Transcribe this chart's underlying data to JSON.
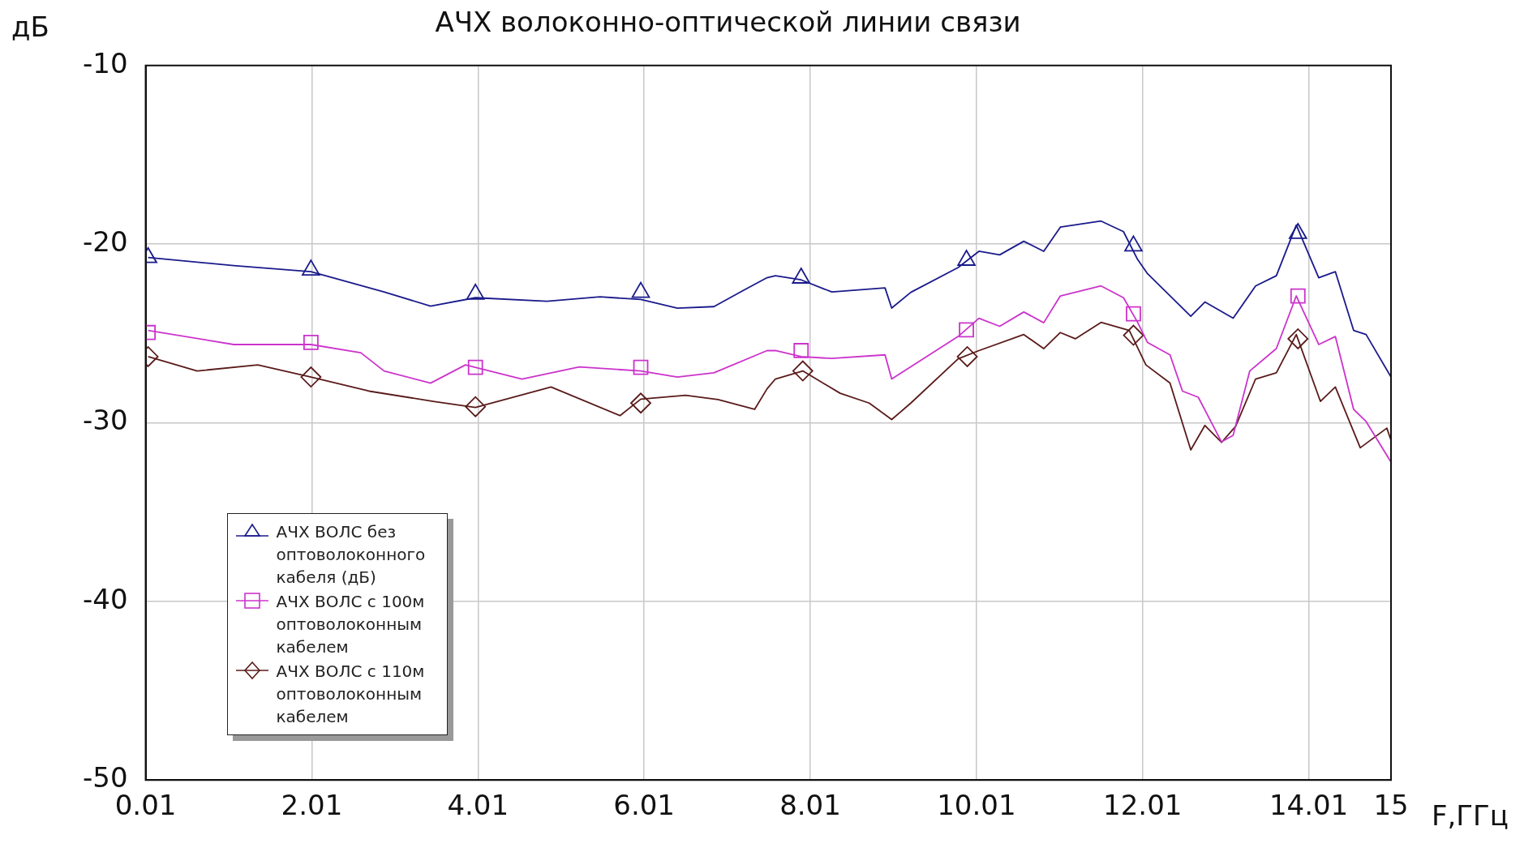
{
  "chart_data": {
    "type": "line",
    "title": "АЧХ волоконно-оптической линии связи",
    "xlabel": "F,ГГц",
    "ylabel": "дБ",
    "xlim": [
      0.01,
      15
    ],
    "xticks": [
      0.01,
      2.01,
      4.01,
      6.01,
      8.01,
      10.01,
      12.01,
      14.01,
      15
    ],
    "ylim": [
      -50,
      -10
    ],
    "yticks": [
      -50,
      -40,
      -30,
      -20,
      -10
    ],
    "grid": true,
    "legend": "bottom left",
    "line_style": "solid",
    "series": [
      {
        "name": "АЧХ ВОЛС без оптоволоконного кабеля (дБ)",
        "color": "#1a1a8c",
        "x": [
          0.04,
          1.07,
          2.0,
          2.88,
          3.44,
          3.98,
          4.84,
          5.48,
          5.97,
          6.41,
          6.85,
          7.2,
          7.49,
          7.59,
          7.9,
          8.27,
          8.91,
          8.99,
          9.22,
          9.79,
          10.04,
          10.29,
          10.58,
          10.82,
          11.02,
          11.51,
          11.78,
          11.95,
          12.07,
          12.59,
          12.76,
          13.1,
          13.37,
          13.62,
          13.86,
          14.13,
          14.33,
          14.55,
          14.7,
          15.0
        ],
        "values": [
          -20.75,
          -21.2,
          -21.54,
          -22.68,
          -23.47,
          -23.0,
          -23.2,
          -22.95,
          -23.1,
          -23.58,
          -23.5,
          -22.6,
          -21.88,
          -21.77,
          -22.0,
          -22.68,
          -22.45,
          -23.58,
          -22.7,
          -21.31,
          -20.4,
          -20.6,
          -19.84,
          -20.4,
          -19.05,
          -18.71,
          -19.3,
          -20.86,
          -21.66,
          -24.04,
          -23.24,
          -24.15,
          -22.34,
          -21.77,
          -18.93,
          -21.88,
          -21.54,
          -24.83,
          -25.06,
          -27.44
        ]
      },
      {
        "type": "scatter",
        "color": "#1a1a8c",
        "marker": "triangle",
        "x": [
          0.04,
          2.0,
          3.98,
          5.97,
          7.9,
          9.89,
          11.9,
          13.88
        ],
        "values": [
          -20.75,
          -21.45,
          -22.8,
          -22.7,
          -21.9,
          -20.9,
          -20.1,
          -19.4
        ]
      },
      {
        "name": "АЧХ ВОЛС с 100м оптоволоконным кабелем",
        "color": "#cc33cc",
        "x": [
          0.04,
          1.07,
          2.0,
          2.6,
          2.88,
          3.44,
          3.86,
          4.54,
          5.23,
          5.97,
          6.41,
          6.85,
          7.49,
          7.59,
          7.9,
          8.27,
          8.91,
          8.99,
          9.79,
          10.04,
          10.29,
          10.58,
          10.82,
          11.02,
          11.51,
          11.78,
          11.95,
          12.07,
          12.34,
          12.49,
          12.68,
          12.96,
          13.1,
          13.3,
          13.62,
          13.86,
          14.13,
          14.33,
          14.55,
          14.7,
          15.0
        ],
        "values": [
          -24.83,
          -25.62,
          -25.62,
          -26.08,
          -27.1,
          -27.78,
          -26.76,
          -27.55,
          -26.87,
          -27.1,
          -27.44,
          -27.2,
          -25.96,
          -25.96,
          -26.3,
          -26.4,
          -26.2,
          -27.55,
          -25.17,
          -24.15,
          -24.6,
          -23.8,
          -24.4,
          -22.9,
          -22.34,
          -23.0,
          -24.38,
          -25.51,
          -26.2,
          -28.23,
          -28.57,
          -31.07,
          -30.7,
          -27.1,
          -25.85,
          -22.9,
          -25.62,
          -25.17,
          -29.25,
          -29.93,
          -32.2
        ]
      },
      {
        "type": "scatter",
        "color": "#cc33cc",
        "marker": "square",
        "x": [
          0.04,
          2.0,
          3.98,
          5.97,
          7.9,
          9.89,
          11.9,
          13.88
        ],
        "values": [
          -24.95,
          -25.5,
          -26.9,
          -26.9,
          -25.96,
          -24.8,
          -23.9,
          -22.9
        ]
      },
      {
        "name": "АЧХ ВОЛС с 110м оптоволоконным кабелем",
        "color": "#5a1a1a",
        "x": [
          0.04,
          0.63,
          1.36,
          2.0,
          2.7,
          3.47,
          3.98,
          4.89,
          5.72,
          5.97,
          6.51,
          6.9,
          7.34,
          7.49,
          7.59,
          7.92,
          8.37,
          8.72,
          8.99,
          9.22,
          9.79,
          10.04,
          10.58,
          10.82,
          11.02,
          11.2,
          11.51,
          11.85,
          12.05,
          12.34,
          12.59,
          12.76,
          12.96,
          13.13,
          13.37,
          13.62,
          13.86,
          14.15,
          14.33,
          14.63,
          14.95,
          15.0
        ],
        "values": [
          -26.3,
          -27.1,
          -26.76,
          -27.44,
          -28.23,
          -28.8,
          -29.14,
          -28.0,
          -29.6,
          -28.68,
          -28.46,
          -28.7,
          -29.25,
          -28.1,
          -27.55,
          -27.1,
          -28.35,
          -28.9,
          -29.82,
          -28.9,
          -26.42,
          -25.96,
          -25.06,
          -25.85,
          -24.95,
          -25.3,
          -24.38,
          -24.83,
          -26.76,
          -27.78,
          -31.52,
          -30.15,
          -31.1,
          -30.2,
          -27.55,
          -27.2,
          -25.06,
          -28.8,
          -28.0,
          -31.4,
          -30.3,
          -30.97
        ]
      },
      {
        "type": "scatter",
        "color": "#5a1a1a",
        "marker": "diamond",
        "x": [
          0.04,
          2.0,
          3.98,
          5.97,
          7.92,
          9.9,
          11.9,
          13.88
        ],
        "values": [
          -26.3,
          -27.44,
          -29.1,
          -28.9,
          -27.1,
          -26.3,
          -25.1,
          -25.3
        ]
      }
    ]
  }
}
